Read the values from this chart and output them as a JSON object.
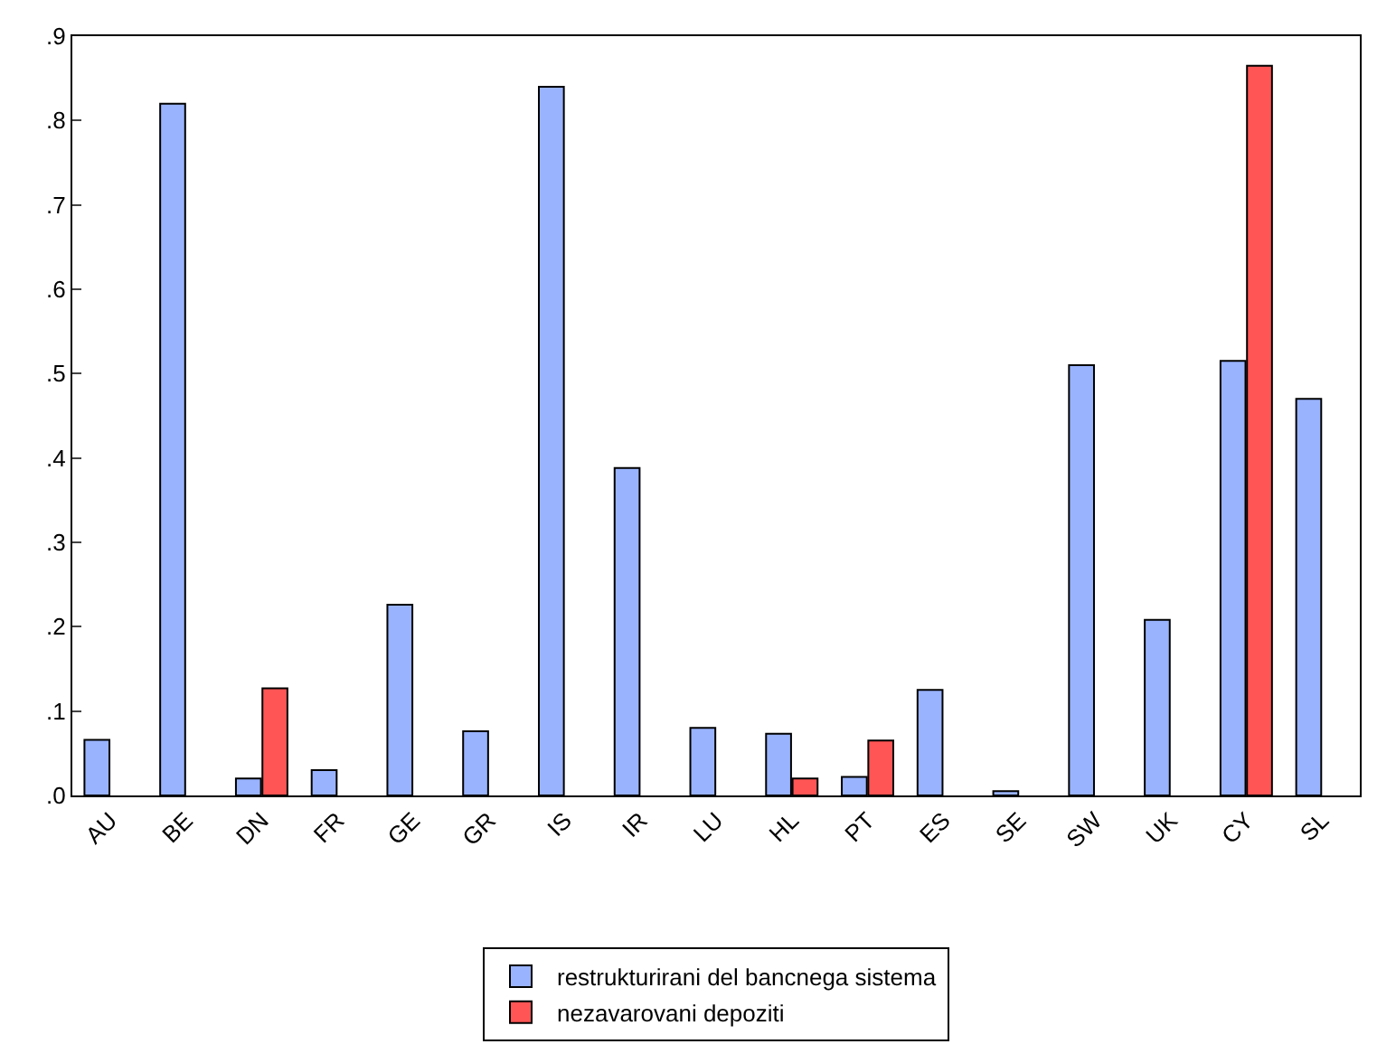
{
  "chart_data": {
    "type": "bar",
    "categories": [
      "AU",
      "BE",
      "DN",
      "FR",
      "GE",
      "GR",
      "IS",
      "IR",
      "LU",
      "HL",
      "PT",
      "ES",
      "SE",
      "SW",
      "UK",
      "CY",
      "SL"
    ],
    "series": [
      {
        "name": "restrukturirani del bancnega sistema",
        "color": "#99b3ff",
        "values": [
          0.066,
          0.82,
          0.02,
          0.03,
          0.226,
          0.076,
          0.84,
          0.388,
          0.08,
          0.073,
          0.022,
          0.125,
          0.005,
          0.51,
          0.208,
          0.515,
          0.47
        ]
      },
      {
        "name": "nezavarovani depoziti",
        "color": "#ff5555",
        "values": [
          null,
          null,
          0.127,
          null,
          null,
          null,
          null,
          null,
          null,
          0.02,
          0.065,
          null,
          null,
          null,
          null,
          0.865,
          null
        ]
      }
    ],
    "ylim": [
      0,
      0.9
    ],
    "yticks": [
      {
        "value": 0,
        "label": ".0"
      },
      {
        "value": 0.1,
        "label": ".1"
      },
      {
        "value": 0.2,
        "label": ".2"
      },
      {
        "value": 0.3,
        "label": ".3"
      },
      {
        "value": 0.4,
        "label": ".4"
      },
      {
        "value": 0.5,
        "label": ".5"
      },
      {
        "value": 0.6,
        "label": ".6"
      },
      {
        "value": 0.7,
        "label": ".7"
      },
      {
        "value": 0.8,
        "label": ".8"
      },
      {
        "value": 0.9,
        "label": ".9"
      }
    ],
    "legend": "bottom"
  }
}
